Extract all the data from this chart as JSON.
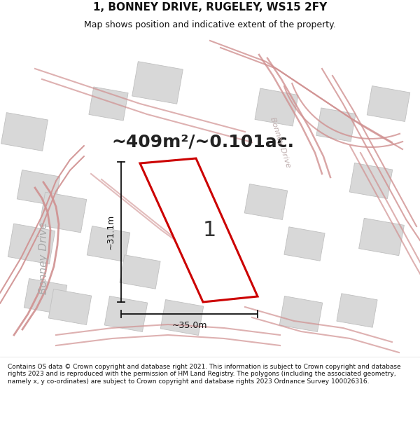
{
  "title": "1, BONNEY DRIVE, RUGELEY, WS15 2FY",
  "subtitle": "Map shows position and indicative extent of the property.",
  "area_text": "~409m²/~0.101ac.",
  "plot_label": "1",
  "dim_h": "~35.0m",
  "dim_v": "~31.1m",
  "footer": "Contains OS data © Crown copyright and database right 2021. This information is subject to Crown copyright and database rights 2023 and is reproduced with the permission of HM Land Registry. The polygons (including the associated geometry, namely x, y co-ordinates) are subject to Crown copyright and database rights 2023 Ordnance Survey 100026316.",
  "map_bg": "#f2f0f0",
  "plot_color": "#cc0000",
  "building_fill": "#d8d8d8",
  "building_edge": "#c0c0c0",
  "road_color": "#e8a8a8",
  "road_outline_color": "#d09090",
  "street_label_color": "#aaaaaa",
  "title_color": "#111111",
  "footer_color": "#111111",
  "dim_color": "#111111",
  "title_fontsize": 11,
  "subtitle_fontsize": 9,
  "area_fontsize": 18,
  "footer_fontsize": 6.5
}
